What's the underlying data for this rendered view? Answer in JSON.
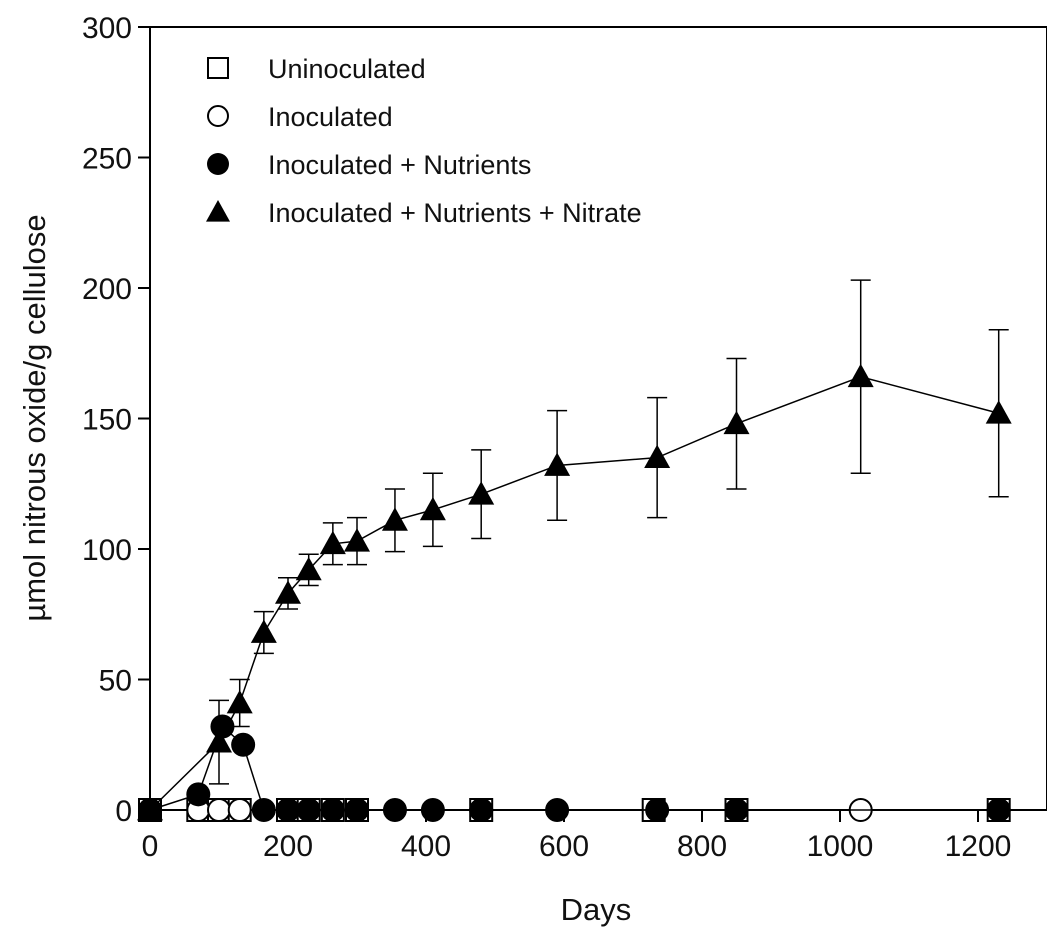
{
  "chart_data": {
    "type": "line",
    "xlabel": "Days",
    "ylabel": "µmol nitrous oxide/g cellulose",
    "xlim": [
      0,
      1300
    ],
    "ylim": [
      0,
      300
    ],
    "xticks": [
      0,
      200,
      400,
      600,
      800,
      1000,
      1200
    ],
    "yticks": [
      0,
      50,
      100,
      150,
      200,
      250,
      300
    ],
    "grid": false,
    "legend_position": "top-left",
    "series": [
      {
        "name": "Uninoculated",
        "marker": "open-square",
        "x": [
          0,
          70,
          100,
          130,
          200,
          230,
          265,
          300,
          480,
          730,
          850,
          1230
        ],
        "y": [
          0,
          0,
          0,
          0,
          0,
          0,
          0,
          0,
          0,
          0,
          0,
          0
        ]
      },
      {
        "name": "Inoculated",
        "marker": "open-circle",
        "x": [
          0,
          70,
          100,
          130,
          200,
          230,
          265,
          300,
          480,
          1030,
          1230
        ],
        "y": [
          0,
          0,
          0,
          0,
          0,
          0,
          0,
          0,
          0,
          0,
          0
        ]
      },
      {
        "name": "Inoculated + Nutrients",
        "marker": "filled-circle",
        "x": [
          0,
          70,
          105,
          135,
          165,
          200,
          230,
          265,
          300,
          355,
          410,
          480,
          590,
          735,
          850,
          1230
        ],
        "y": [
          0,
          6,
          32,
          25,
          0,
          0,
          0,
          0,
          0,
          0,
          0,
          0,
          0,
          0,
          0,
          0
        ]
      },
      {
        "name": "Inoculated + Nutrients + Nitrate",
        "marker": "filled-triangle",
        "x": [
          0,
          100,
          130,
          165,
          200,
          230,
          265,
          300,
          355,
          410,
          480,
          590,
          735,
          850,
          1030,
          1230
        ],
        "y": [
          0,
          26,
          41,
          68,
          83,
          92,
          102,
          103,
          111,
          115,
          121,
          132,
          135,
          148,
          166,
          152
        ],
        "error": [
          0,
          16,
          9,
          8,
          6,
          6,
          8,
          9,
          12,
          14,
          17,
          21,
          23,
          25,
          37,
          32
        ]
      }
    ]
  }
}
